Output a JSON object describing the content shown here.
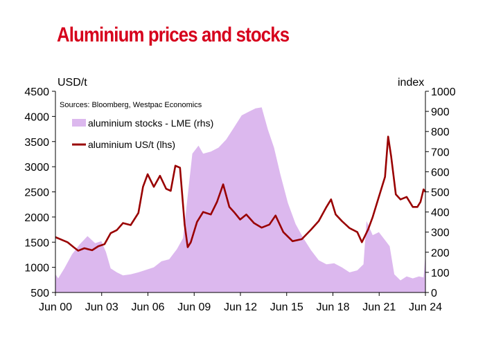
{
  "title": "Aluminium prices and stocks",
  "chart_data": {
    "type": "line+area",
    "title": "Aluminium prices and stocks",
    "source": "Sources: Bloomberg, Westpac Economics",
    "y_left": {
      "label": "USD/t",
      "min": 500,
      "max": 4500,
      "ticks": [
        500,
        1000,
        1500,
        2000,
        2500,
        3000,
        3500,
        4000,
        4500
      ]
    },
    "y_right": {
      "label": "index",
      "min": 0,
      "max": 1000,
      "ticks": [
        0,
        100,
        200,
        300,
        400,
        500,
        600,
        700,
        800,
        900,
        1000
      ]
    },
    "x_axis": {
      "min": 2000.42,
      "max": 2024.42,
      "ticks": [
        {
          "label": "Jun 00",
          "value": 2000.42
        },
        {
          "label": "Jun 03",
          "value": 2003.42
        },
        {
          "label": "Jun 06",
          "value": 2006.42
        },
        {
          "label": "Jun 09",
          "value": 2009.42
        },
        {
          "label": "Jun 12",
          "value": 2012.42
        },
        {
          "label": "Jun 15",
          "value": 2015.42
        },
        {
          "label": "Jun 18",
          "value": 2018.42
        },
        {
          "label": "Jun 21",
          "value": 2021.42
        },
        {
          "label": "Jun 24",
          "value": 2024.42
        }
      ]
    },
    "legend": {
      "placement": "top-left"
    },
    "grid": false,
    "series": [
      {
        "name": "aluminium stocks - LME (rhs)",
        "type": "area",
        "axis": "right",
        "color": "#dcb8ee",
        "x": [
          2000.42,
          2000.6,
          2001.0,
          2001.5,
          2002.0,
          2002.5,
          2003.0,
          2003.4,
          2003.7,
          2004.0,
          2004.4,
          2004.8,
          2005.3,
          2005.8,
          2006.2,
          2006.8,
          2007.3,
          2007.8,
          2008.3,
          2008.7,
          2009.0,
          2009.3,
          2009.7,
          2010.0,
          2010.5,
          2011.0,
          2011.5,
          2012.0,
          2012.5,
          2013.0,
          2013.4,
          2013.8,
          2014.2,
          2014.6,
          2015.0,
          2015.5,
          2016.0,
          2016.5,
          2017.0,
          2017.5,
          2018.0,
          2018.5,
          2019.0,
          2019.5,
          2020.0,
          2020.4,
          2020.6,
          2021.0,
          2021.4,
          2021.8,
          2022.1,
          2022.4,
          2022.8,
          2023.2,
          2023.6,
          2024.0,
          2024.3,
          2024.42
        ],
        "values": [
          90,
          70,
          120,
          190,
          240,
          280,
          245,
          255,
          200,
          120,
          100,
          85,
          90,
          100,
          110,
          125,
          155,
          165,
          215,
          270,
          480,
          690,
          730,
          690,
          700,
          720,
          760,
          820,
          880,
          900,
          915,
          920,
          810,
          720,
          590,
          445,
          340,
          270,
          210,
          160,
          140,
          145,
          125,
          100,
          110,
          140,
          355,
          285,
          300,
          260,
          230,
          90,
          60,
          80,
          70,
          80,
          75,
          190
        ]
      },
      {
        "name": "aluminium US/t (lhs)",
        "type": "line",
        "axis": "left",
        "color": "#990000",
        "x": [
          2000.42,
          2000.8,
          2001.2,
          2001.6,
          2001.9,
          2002.3,
          2002.8,
          2003.2,
          2003.6,
          2004.0,
          2004.4,
          2004.8,
          2005.3,
          2005.8,
          2006.1,
          2006.4,
          2006.8,
          2007.2,
          2007.6,
          2007.9,
          2008.2,
          2008.5,
          2008.8,
          2009.0,
          2009.2,
          2009.6,
          2010.0,
          2010.5,
          2010.9,
          2011.3,
          2011.7,
          2012.0,
          2012.4,
          2012.8,
          2013.3,
          2013.8,
          2014.3,
          2014.7,
          2015.2,
          2015.8,
          2016.4,
          2017.0,
          2017.5,
          2018.0,
          2018.3,
          2018.6,
          2019.0,
          2019.5,
          2020.0,
          2020.3,
          2020.7,
          2021.0,
          2021.4,
          2021.8,
          2022.0,
          2022.2,
          2022.5,
          2022.8,
          2023.2,
          2023.6,
          2023.9,
          2024.1,
          2024.3,
          2024.42
        ],
        "values": [
          1600,
          1550,
          1500,
          1400,
          1330,
          1380,
          1340,
          1420,
          1460,
          1680,
          1740,
          1880,
          1840,
          2080,
          2600,
          2850,
          2600,
          2820,
          2560,
          2520,
          3020,
          2980,
          1850,
          1400,
          1500,
          1900,
          2100,
          2050,
          2300,
          2650,
          2200,
          2100,
          1950,
          2050,
          1880,
          1790,
          1850,
          2030,
          1700,
          1520,
          1560,
          1750,
          1920,
          2200,
          2350,
          2050,
          1920,
          1780,
          1700,
          1500,
          1750,
          2000,
          2400,
          2800,
          3600,
          3200,
          2450,
          2350,
          2400,
          2200,
          2200,
          2300,
          2550,
          2500
        ]
      }
    ]
  }
}
